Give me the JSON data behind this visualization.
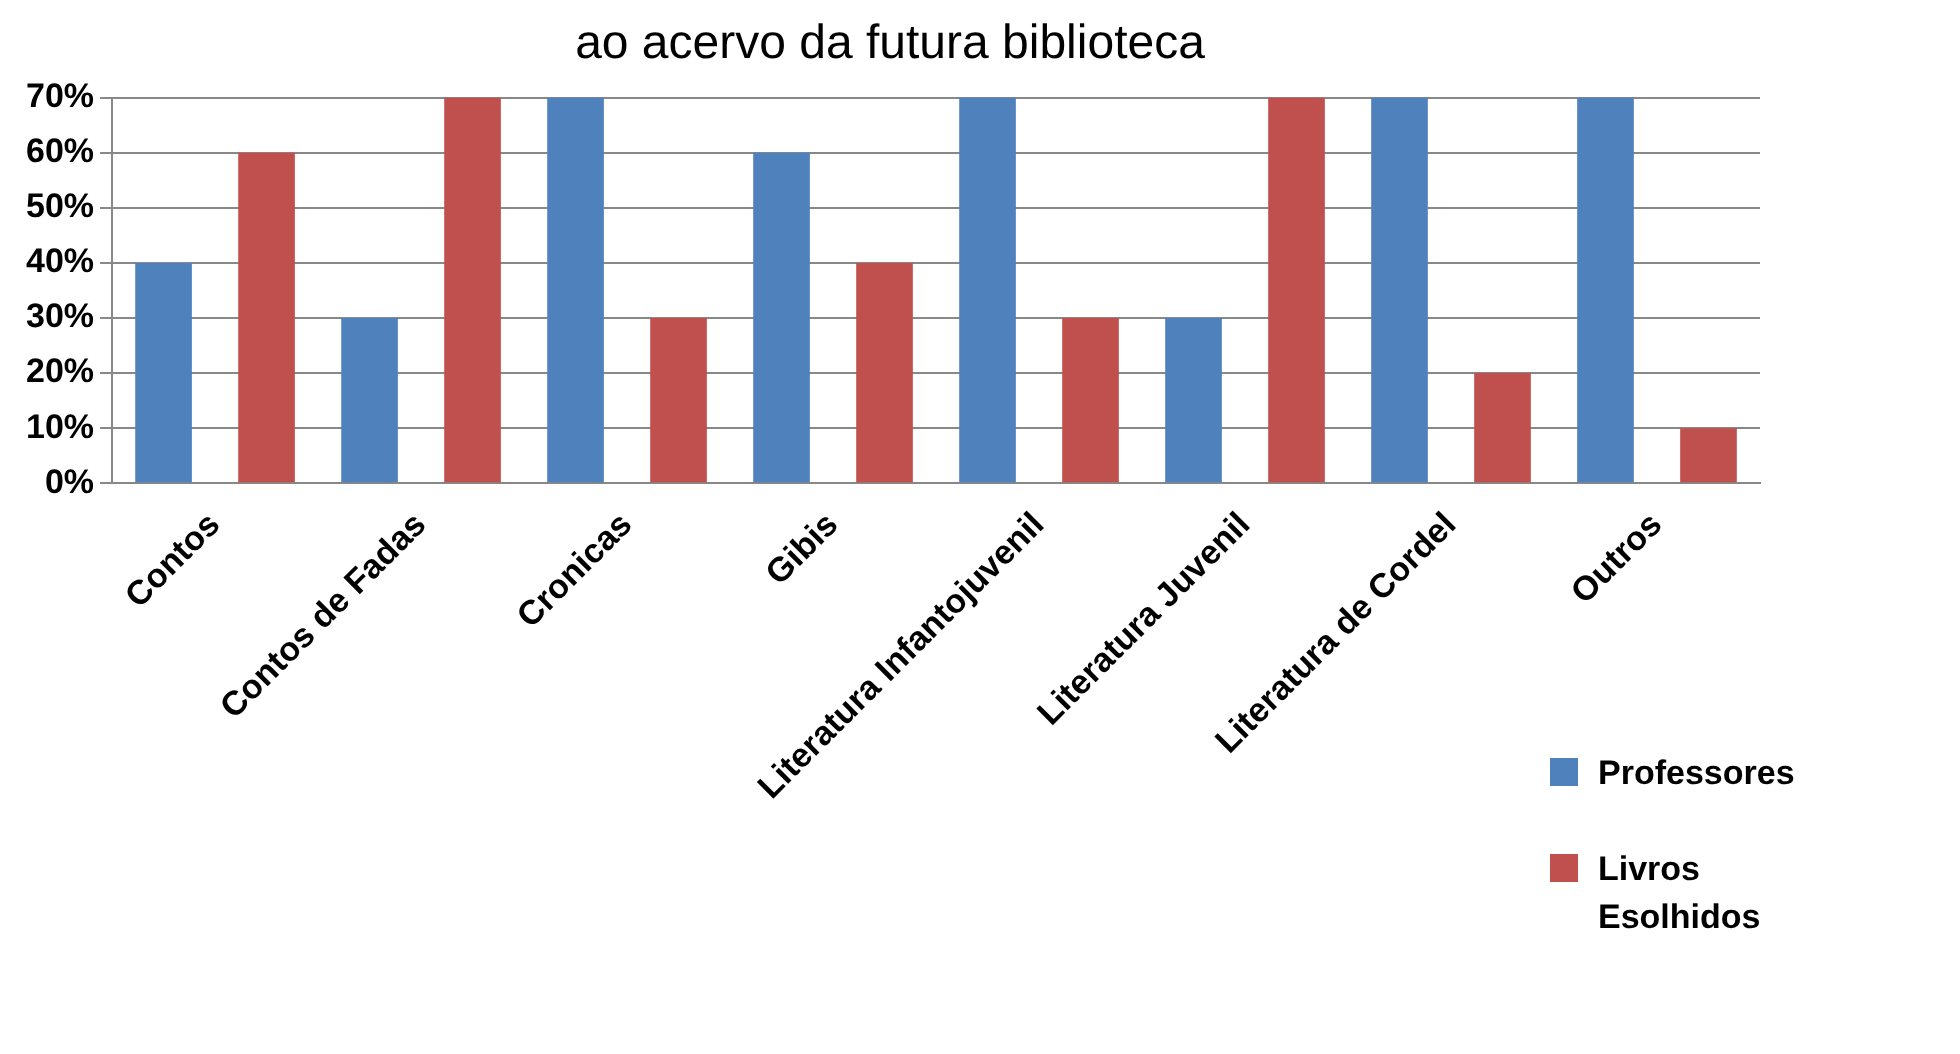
{
  "chart_data": {
    "type": "bar",
    "title": "ao acervo da futura biblioteca",
    "categories": [
      "Contos",
      "Contos de Fadas",
      "Cronicas",
      "Gibis",
      "Literatura Infantojuvenil",
      "Literatura Juvenil",
      "Literatura de Cordel",
      "Outros"
    ],
    "series": [
      {
        "name": "Professores",
        "color": "#4f81bd",
        "values": [
          40,
          30,
          70,
          60,
          70,
          30,
          70,
          70
        ]
      },
      {
        "name": "Livros Esolhidos",
        "color": "#c0504d",
        "values": [
          60,
          70,
          30,
          40,
          30,
          70,
          20,
          10
        ]
      }
    ],
    "ylim": [
      0,
      70
    ],
    "yticks": [
      {
        "value": 0,
        "label": "0%"
      },
      {
        "value": 10,
        "label": "10%"
      },
      {
        "value": 20,
        "label": "20%"
      },
      {
        "value": 30,
        "label": "30%"
      },
      {
        "value": 40,
        "label": "40%"
      },
      {
        "value": 50,
        "label": "50%"
      },
      {
        "value": 60,
        "label": "60%"
      },
      {
        "value": 70,
        "label": "70%"
      }
    ],
    "grid": "y",
    "legend": "right"
  }
}
